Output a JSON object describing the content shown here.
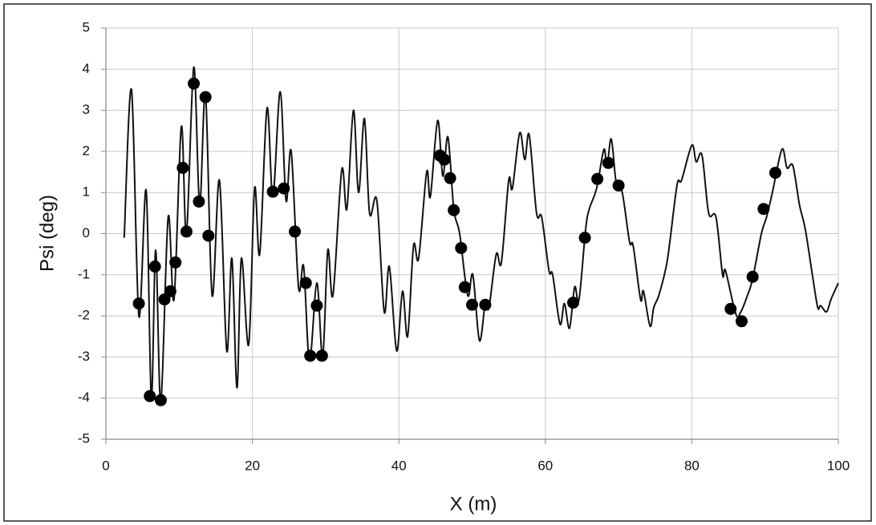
{
  "chart_data": {
    "type": "line",
    "x_label": "X (m)",
    "y_label": "Psi (deg)",
    "xlim": [
      0,
      100
    ],
    "ylim": [
      -5,
      5
    ],
    "xticks": [
      0,
      20,
      40,
      60,
      80,
      100
    ],
    "yticks": [
      -5,
      -4,
      -3,
      -2,
      -1,
      0,
      1,
      2,
      3,
      4,
      5
    ],
    "grid": true,
    "series": [
      {
        "type": "line",
        "color": "#111111",
        "x": [
          2.5,
          3.5,
          4.5,
          5.5,
          6.2,
          6.8,
          7.5,
          8.5,
          9.3,
          10.3,
          11,
          12,
          12.8,
          13.6,
          14.5,
          15.5,
          16.5,
          17.2,
          17.9,
          18.5,
          19.5,
          20.3,
          21,
          22,
          22.8,
          23.8,
          24.6,
          25.3,
          26.3,
          27,
          27.8,
          28.8,
          29.6,
          30.3,
          31,
          32.2,
          32.9,
          33.8,
          34.5,
          35.3,
          36,
          37,
          38,
          38.7,
          39.7,
          40.5,
          41.2,
          42,
          42.7,
          43.8,
          44.3,
          45.3,
          46,
          46.7,
          47.5,
          48.3,
          49.4,
          50.1,
          51,
          51.8,
          52.3,
          53.3,
          54,
          55,
          55.5,
          56.5,
          57.2,
          57.8,
          58.8,
          59.5,
          60.5,
          61,
          62,
          62.6,
          63.3,
          64,
          64.6,
          65.5,
          66,
          67,
          68,
          68.4,
          69,
          69.7,
          70.5,
          71.5,
          72,
          73,
          73.4,
          74.3,
          74.8,
          75.5,
          76.5,
          77,
          78,
          78.6,
          80,
          80.6,
          81.4,
          82.3,
          83.3,
          84.2,
          84.6,
          86,
          86.7,
          87.6,
          88.3,
          89.5,
          90.2,
          91,
          92.3,
          93,
          93.8,
          94.7,
          95.5,
          96.5,
          97.2,
          97.6,
          98.4,
          99,
          100
        ],
        "values": [
          -0.1,
          3.5,
          -2.0,
          1.05,
          -4.0,
          -0.4,
          -4.1,
          0.4,
          -1.6,
          2.6,
          0.0,
          4.05,
          0.7,
          3.4,
          -1.5,
          1.3,
          -2.85,
          -0.6,
          -3.75,
          -0.6,
          -2.7,
          1.1,
          -0.5,
          3.05,
          0.9,
          3.45,
          0.8,
          2.0,
          -1.3,
          -0.8,
          -3.1,
          -1.2,
          -3.0,
          -0.4,
          -1.5,
          1.55,
          0.6,
          3.0,
          1.0,
          2.8,
          0.5,
          0.8,
          -1.9,
          -0.8,
          -2.85,
          -1.4,
          -2.5,
          -0.3,
          -0.6,
          1.5,
          0.9,
          2.75,
          1.4,
          2.35,
          0.6,
          0.0,
          -1.5,
          -1.0,
          -2.6,
          -1.7,
          -1.8,
          -0.5,
          -0.7,
          1.3,
          1.1,
          2.45,
          1.8,
          2.4,
          0.5,
          0.4,
          -0.9,
          -1.0,
          -2.2,
          -1.7,
          -2.3,
          -1.3,
          -1.6,
          0.1,
          0.6,
          1.1,
          2.05,
          1.6,
          2.3,
          1.2,
          1.0,
          -0.2,
          -0.3,
          -1.6,
          -1.4,
          -2.25,
          -1.8,
          -1.5,
          -0.8,
          -0.2,
          1.2,
          1.3,
          2.15,
          1.75,
          1.9,
          0.5,
          0.4,
          -1.0,
          -0.9,
          -1.95,
          -1.9,
          -1.5,
          -1.1,
          0.0,
          0.4,
          1.0,
          2.05,
          1.6,
          1.65,
          0.7,
          0.1,
          -1.05,
          -1.8,
          -1.75,
          -1.9,
          -1.6,
          -1.2
        ]
      },
      {
        "type": "scatter",
        "color": "#000000",
        "x": [
          4.5,
          6,
          6.7,
          7.5,
          8,
          8.8,
          9.5,
          10.5,
          11,
          12,
          12.7,
          13.6,
          14,
          22.8,
          24.3,
          25.8,
          27.3,
          27.9,
          28.8,
          29.5,
          45.6,
          46.2,
          47,
          47.5,
          48.5,
          49,
          50,
          51.8,
          63.8,
          65.4,
          67.1,
          68.6,
          70,
          85.3,
          86.8,
          88.3,
          89.8,
          91.4
        ],
        "values": [
          -1.7,
          -3.95,
          -0.8,
          -4.05,
          -1.6,
          -1.4,
          -0.7,
          1.6,
          0.05,
          3.65,
          0.78,
          3.32,
          -0.05,
          1.02,
          1.1,
          0.05,
          -1.2,
          -2.97,
          -1.75,
          -2.97,
          1.9,
          1.8,
          1.35,
          0.57,
          -0.35,
          -1.3,
          -1.73,
          -1.73,
          -1.68,
          -0.1,
          1.33,
          1.72,
          1.17,
          -1.83,
          -2.13,
          -1.05,
          0.6,
          1.48
        ]
      }
    ]
  }
}
